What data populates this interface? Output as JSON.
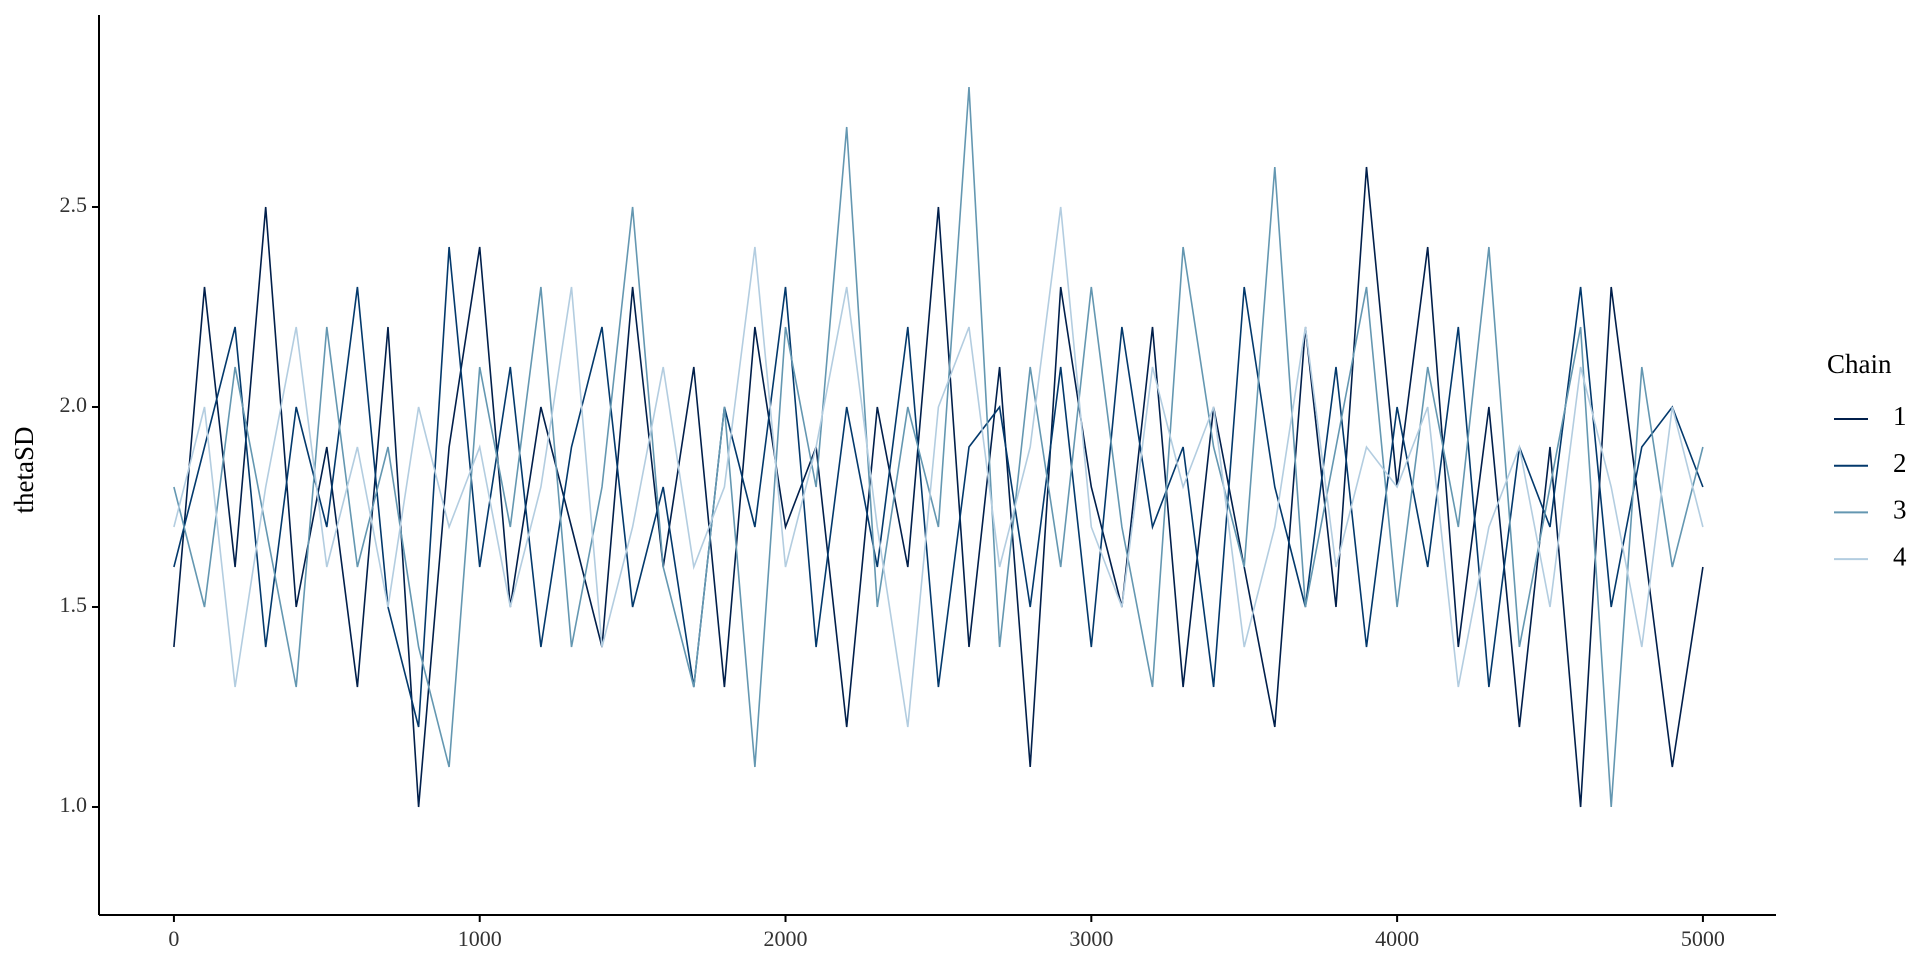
{
  "chart_data": {
    "type": "line",
    "y_label": "thetaSD",
    "legend_title": "Chain",
    "legend_position": "right",
    "grid": false,
    "x": [
      0,
      100,
      200,
      300,
      400,
      500,
      600,
      700,
      800,
      900,
      1000,
      1100,
      1200,
      1300,
      1400,
      1500,
      1600,
      1700,
      1800,
      1900,
      2000,
      2100,
      2200,
      2300,
      2400,
      2500,
      2600,
      2700,
      2800,
      2900,
      3000,
      3100,
      3200,
      3300,
      3400,
      3500,
      3600,
      3700,
      3800,
      3900,
      4000,
      4100,
      4200,
      4300,
      4400,
      4500,
      4600,
      4700,
      4800,
      4900,
      5000
    ],
    "series": [
      {
        "name": "1",
        "color": "#011f4b",
        "values": [
          1.4,
          2.3,
          1.6,
          2.5,
          1.5,
          1.9,
          1.3,
          2.2,
          1.0,
          1.9,
          2.4,
          1.5,
          2.0,
          1.7,
          1.4,
          2.3,
          1.6,
          2.1,
          1.3,
          2.2,
          1.7,
          1.9,
          1.2,
          2.0,
          1.6,
          2.5,
          1.4,
          2.1,
          1.1,
          2.3,
          1.8,
          1.5,
          2.2,
          1.3,
          2.0,
          1.6,
          1.2,
          2.2,
          1.5,
          2.6,
          1.8,
          2.4,
          1.4,
          2.0,
          1.2,
          1.9,
          1.0,
          2.3,
          1.7,
          1.1,
          1.6
        ]
      },
      {
        "name": "2",
        "color": "#03396c",
        "values": [
          1.6,
          1.9,
          2.2,
          1.4,
          2.0,
          1.7,
          2.3,
          1.5,
          1.2,
          2.4,
          1.6,
          2.1,
          1.4,
          1.9,
          2.2,
          1.5,
          1.8,
          1.3,
          2.0,
          1.7,
          2.3,
          1.4,
          2.0,
          1.6,
          2.2,
          1.3,
          1.9,
          2.0,
          1.5,
          2.1,
          1.4,
          2.2,
          1.7,
          1.9,
          1.3,
          2.3,
          1.8,
          1.5,
          2.1,
          1.4,
          2.0,
          1.6,
          2.2,
          1.3,
          1.9,
          1.7,
          2.3,
          1.5,
          1.9,
          2.0,
          1.8
        ]
      },
      {
        "name": "3",
        "color": "#6497b1",
        "values": [
          1.8,
          1.5,
          2.1,
          1.7,
          1.3,
          2.2,
          1.6,
          1.9,
          1.4,
          1.1,
          2.1,
          1.7,
          2.3,
          1.4,
          1.8,
          2.5,
          1.6,
          1.3,
          2.0,
          1.1,
          2.2,
          1.8,
          2.7,
          1.5,
          2.0,
          1.7,
          2.8,
          1.4,
          2.1,
          1.6,
          2.3,
          1.7,
          1.3,
          2.4,
          1.9,
          1.6,
          2.6,
          1.5,
          1.9,
          2.3,
          1.5,
          2.1,
          1.7,
          2.4,
          1.4,
          1.8,
          2.2,
          1.0,
          2.1,
          1.6,
          1.9
        ]
      },
      {
        "name": "4",
        "color": "#b3cde0",
        "values": [
          1.7,
          2.0,
          1.3,
          1.8,
          2.2,
          1.6,
          1.9,
          1.5,
          2.0,
          1.7,
          1.9,
          1.5,
          1.8,
          2.3,
          1.4,
          1.7,
          2.1,
          1.6,
          1.8,
          2.4,
          1.6,
          1.9,
          2.3,
          1.7,
          1.2,
          2.0,
          2.2,
          1.6,
          1.9,
          2.5,
          1.7,
          1.5,
          2.1,
          1.8,
          2.0,
          1.4,
          1.7,
          2.2,
          1.6,
          1.9,
          1.8,
          2.0,
          1.3,
          1.7,
          1.9,
          1.5,
          2.1,
          1.8,
          1.4,
          2.0,
          1.7
        ]
      }
    ],
    "xlim": [
      -245,
      5239
    ],
    "ylim": [
      0.73,
      2.98
    ],
    "xticks": [
      0,
      1000,
      2000,
      3000,
      4000,
      5000
    ],
    "yticks": [
      {
        "value": 1,
        "label": "1.0"
      },
      1.5,
      {
        "value": 2,
        "label": "2.0"
      },
      2.5
    ]
  }
}
